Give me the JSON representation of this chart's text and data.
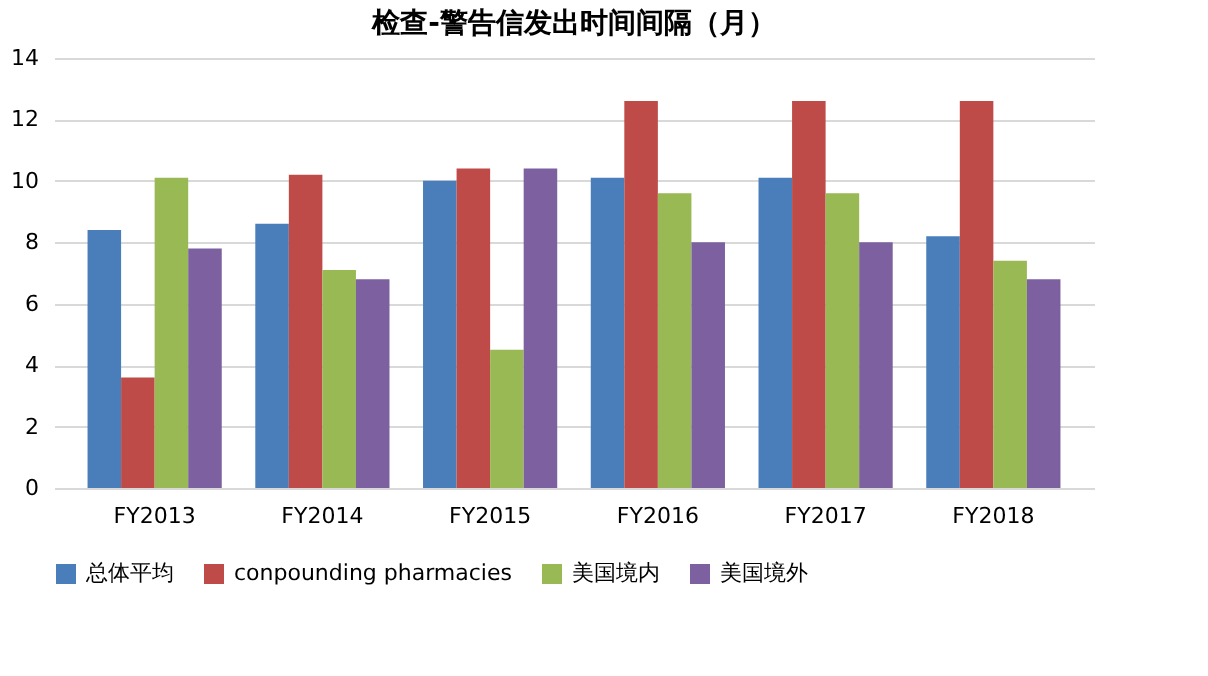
{
  "chart_data": {
    "type": "bar",
    "title": "检查-警告信发出时间间隔（月）",
    "categories": [
      "FY2013",
      "FY2014",
      "FY2015",
      "FY2016",
      "FY2017",
      "FY2018"
    ],
    "series": [
      {
        "name": "总体平均",
        "color": "#4a7ebb",
        "values": [
          8.4,
          8.6,
          10.0,
          10.1,
          10.1,
          8.2
        ]
      },
      {
        "name": "conpounding pharmacies",
        "color": "#be4b48",
        "values": [
          3.6,
          10.2,
          10.4,
          12.6,
          12.6,
          12.6
        ]
      },
      {
        "name": "美国境内",
        "color": "#98b954",
        "values": [
          10.1,
          7.1,
          4.5,
          9.6,
          9.6,
          7.4
        ]
      },
      {
        "name": "美国境外",
        "color": "#7d60a0",
        "values": [
          7.8,
          6.8,
          10.4,
          8.0,
          8.0,
          6.8
        ]
      }
    ],
    "ylim": [
      0,
      14
    ],
    "yticks": [
      0,
      2,
      4,
      6,
      8,
      10,
      12,
      14
    ],
    "grid": "y",
    "legend": "bottom"
  }
}
